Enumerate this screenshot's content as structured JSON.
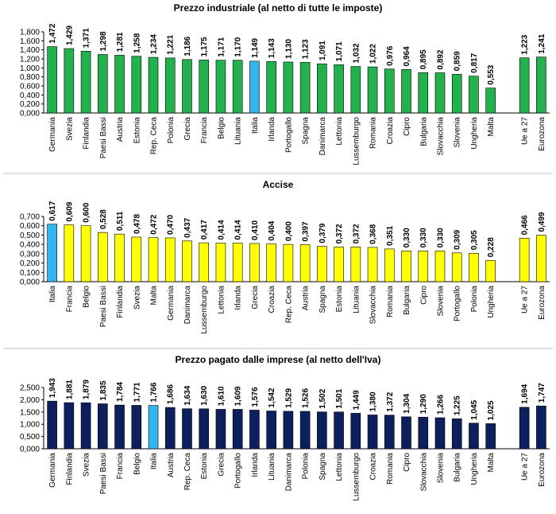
{
  "chart_data": [
    {
      "type": "bar",
      "title": "Prezzo industriale (al netto di tutte le imposte)",
      "ylim": [
        0,
        1.8
      ],
      "yticks": [
        "0,000",
        "0,200",
        "0,400",
        "0,600",
        "0,800",
        "1,000",
        "1,200",
        "1,400",
        "1,600",
        "1,800"
      ],
      "bar_color": "#22b14c",
      "highlight_color": "#33b5f0",
      "highlight": [
        "Italia"
      ],
      "categories": [
        "Germania",
        "Svezia",
        "Finlandia",
        "Paesi Bassi",
        "Austria",
        "Estonia",
        "Rep. Ceca",
        "Polonia",
        "Grecia",
        "Francia",
        "Belgio",
        "Lituania",
        "Italia",
        "Irlanda",
        "Portogallo",
        "Spagna",
        "Danimarca",
        "Lettonia",
        "Lussemburgo",
        "Romania",
        "Croazia",
        "Cipro",
        "Bulgaria",
        "Slovacchia",
        "Slovenia",
        "Ungheria",
        "Malta",
        "",
        "Ue a 27",
        "Eurozona"
      ],
      "values": [
        1.472,
        1.429,
        1.371,
        1.298,
        1.281,
        1.258,
        1.234,
        1.221,
        1.186,
        1.175,
        1.171,
        1.17,
        1.149,
        1.143,
        1.13,
        1.123,
        1.091,
        1.071,
        1.032,
        1.022,
        0.976,
        0.964,
        0.895,
        0.892,
        0.859,
        0.817,
        0.553,
        null,
        1.223,
        1.241
      ],
      "labels": [
        "1,472",
        "1,429",
        "1,371",
        "1,298",
        "1,281",
        "1,258",
        "1,234",
        "1,221",
        "1,186",
        "1,175",
        "1,171",
        "1,170",
        "1,149",
        "1,143",
        "1,130",
        "1,123",
        "1,091",
        "1,071",
        "1,032",
        "1,022",
        "0,976",
        "0,964",
        "0,895",
        "0,892",
        "0,859",
        "0,817",
        "0,553",
        "",
        "1,223",
        "1,241"
      ]
    },
    {
      "type": "bar",
      "title": "Accise",
      "ylim": [
        0,
        0.7
      ],
      "yticks": [
        "0,000",
        "0,100",
        "0,200",
        "0,300",
        "0,400",
        "0,500",
        "0,600",
        "0,700"
      ],
      "bar_color": "#ffff00",
      "highlight_color": "#33b5f0",
      "highlight": [
        "Italia"
      ],
      "categories": [
        "Italia",
        "Francia",
        "Belgio",
        "Paesi Bassi",
        "Finlandia",
        "Svezia",
        "Malta",
        "Germania",
        "Danimarca",
        "Lussemburgo",
        "Lettonia",
        "Irlanda",
        "Grecia",
        "Croazia",
        "Rep. Ceca",
        "Austria",
        "Spagna",
        "Estonia",
        "Lituania",
        "Slovacchia",
        "Romania",
        "Bulgaria",
        "Cipro",
        "Slovenia",
        "Portogallo",
        "Polonia",
        "Ungheria",
        "",
        "Ue a 27",
        "Eurozona"
      ],
      "values": [
        0.617,
        0.609,
        0.6,
        0.528,
        0.511,
        0.478,
        0.472,
        0.47,
        0.437,
        0.417,
        0.414,
        0.414,
        0.41,
        0.404,
        0.4,
        0.397,
        0.379,
        0.372,
        0.372,
        0.368,
        0.351,
        0.33,
        0.33,
        0.33,
        0.309,
        0.305,
        0.228,
        null,
        0.466,
        0.499
      ],
      "labels": [
        "0,617",
        "0,609",
        "0,600",
        "0,528",
        "0,511",
        "0,478",
        "0,472",
        "0,470",
        "0,437",
        "0,417",
        "0,414",
        "0,414",
        "0,410",
        "0,404",
        "0,400",
        "0,397",
        "0,379",
        "0,372",
        "0,372",
        "0,368",
        "0,351",
        "0,330",
        "0,330",
        "0,330",
        "0,309",
        "0,305",
        "0,228",
        "",
        "0,466",
        "0,499"
      ]
    },
    {
      "type": "bar",
      "title": "Prezzo pagato dalle imprese (al netto dell'Iva)",
      "ylim": [
        0,
        2.5
      ],
      "yticks": [
        "0,000",
        "0,500",
        "1,000",
        "1,500",
        "2,000",
        "2,500"
      ],
      "bar_color": "#0d1f5c",
      "highlight_color": "#33b5f0",
      "highlight": [
        "Italia"
      ],
      "categories": [
        "Germania",
        "Finlandia",
        "Svezia",
        "Paesi Bassi",
        "Francia",
        "Belgio",
        "Italia",
        "Austria",
        "Rep. Ceca",
        "Estonia",
        "Grecia",
        "Portogallo",
        "Irlanda",
        "Lituania",
        "Danimarca",
        "Polonia",
        "Spagna",
        "Lettonia",
        "Lussemburgo",
        "Croazia",
        "Romania",
        "Cipro",
        "Slovacchia",
        "Slovenia",
        "Bulgaria",
        "Ungheria",
        "Malta",
        "",
        "Ue a 27",
        "Eurozona"
      ],
      "values": [
        1.943,
        1.881,
        1.879,
        1.835,
        1.784,
        1.771,
        1.766,
        1.686,
        1.634,
        1.63,
        1.61,
        1.609,
        1.576,
        1.542,
        1.529,
        1.526,
        1.502,
        1.501,
        1.449,
        1.38,
        1.372,
        1.304,
        1.29,
        1.266,
        1.225,
        1.045,
        1.025,
        null,
        1.694,
        1.747
      ],
      "labels": [
        "1,943",
        "1,881",
        "1,879",
        "1,835",
        "1,784",
        "1,771",
        "1,766",
        "1,686",
        "1,634",
        "1,630",
        "1,610",
        "1,609",
        "1,576",
        "1,542",
        "1,529",
        "1,526",
        "1,502",
        "1,501",
        "1,449",
        "1,380",
        "1,372",
        "1,304",
        "1,290",
        "1,266",
        "1,225",
        "1,045",
        "1,025",
        "",
        "1,694",
        "1,747"
      ]
    }
  ]
}
